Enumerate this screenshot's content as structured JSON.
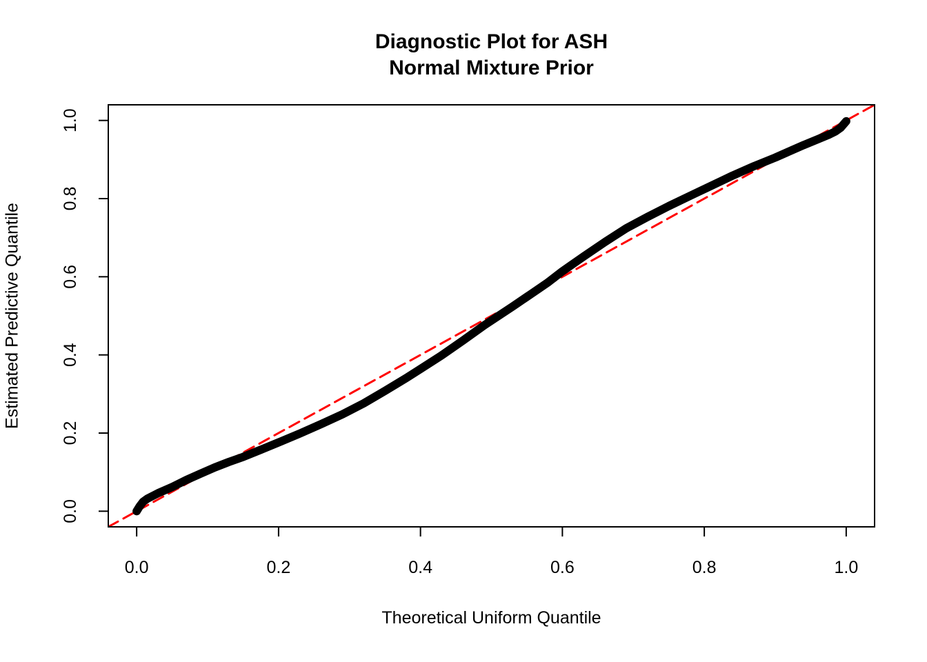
{
  "figure": {
    "title_line1": "Diagnostic Plot for ASH",
    "title_line2": "Normal Mixture Prior",
    "xlabel": "Theoretical Uniform Quantile",
    "ylabel": "Estimated Predictive Quantile"
  },
  "chart_data": {
    "type": "line",
    "title": "Diagnostic Plot for ASH\nNormal Mixture Prior",
    "xlabel": "Theoretical Uniform Quantile",
    "ylabel": "Estimated Predictive Quantile",
    "xlim": [
      -0.04,
      1.04
    ],
    "ylim": [
      -0.04,
      1.04
    ],
    "grid": false,
    "legend": "none",
    "x_tick_labels": [
      "0.0",
      "0.2",
      "0.4",
      "0.6",
      "0.8",
      "1.0"
    ],
    "y_tick_labels": [
      "0.0",
      "0.2",
      "0.4",
      "0.6",
      "0.8",
      "1.0"
    ],
    "x_tick_values": [
      0.0,
      0.2,
      0.4,
      0.6,
      0.8,
      1.0
    ],
    "y_tick_values": [
      0.0,
      0.2,
      0.4,
      0.6,
      0.8,
      1.0
    ],
    "series": [
      {
        "name": "estimated-predictive-quantile-curve",
        "style": "thick-point-curve",
        "color": "#000000",
        "line_width": 12,
        "points": [
          [
            0.0,
            0.0
          ],
          [
            0.004,
            0.012
          ],
          [
            0.009,
            0.024
          ],
          [
            0.015,
            0.032
          ],
          [
            0.03,
            0.046
          ],
          [
            0.05,
            0.062
          ],
          [
            0.07,
            0.08
          ],
          [
            0.09,
            0.096
          ],
          [
            0.11,
            0.112
          ],
          [
            0.13,
            0.126
          ],
          [
            0.15,
            0.139
          ],
          [
            0.18,
            0.161
          ],
          [
            0.2,
            0.176
          ],
          [
            0.23,
            0.199
          ],
          [
            0.26,
            0.223
          ],
          [
            0.29,
            0.248
          ],
          [
            0.32,
            0.276
          ],
          [
            0.35,
            0.308
          ],
          [
            0.38,
            0.341
          ],
          [
            0.4,
            0.364
          ],
          [
            0.43,
            0.399
          ],
          [
            0.46,
            0.437
          ],
          [
            0.49,
            0.476
          ],
          [
            0.51,
            0.5
          ],
          [
            0.53,
            0.524
          ],
          [
            0.56,
            0.561
          ],
          [
            0.58,
            0.586
          ],
          [
            0.6,
            0.614
          ],
          [
            0.63,
            0.652
          ],
          [
            0.66,
            0.689
          ],
          [
            0.69,
            0.724
          ],
          [
            0.72,
            0.753
          ],
          [
            0.75,
            0.781
          ],
          [
            0.78,
            0.807
          ],
          [
            0.81,
            0.833
          ],
          [
            0.84,
            0.859
          ],
          [
            0.87,
            0.883
          ],
          [
            0.9,
            0.905
          ],
          [
            0.92,
            0.921
          ],
          [
            0.94,
            0.937
          ],
          [
            0.96,
            0.952
          ],
          [
            0.975,
            0.963
          ],
          [
            0.985,
            0.972
          ],
          [
            0.992,
            0.981
          ],
          [
            1.0,
            0.998
          ]
        ]
      },
      {
        "name": "identity-reference-line",
        "style": "dashed-line",
        "color": "#FF0000",
        "line_width": 3,
        "dash": [
          16,
          9
        ],
        "points": [
          [
            -0.04,
            -0.04
          ],
          [
            1.04,
            1.04
          ]
        ]
      }
    ]
  },
  "colors": {
    "curve": "#000000",
    "reference": "#FF0000",
    "background": "#ffffff",
    "axis": "#000000"
  }
}
